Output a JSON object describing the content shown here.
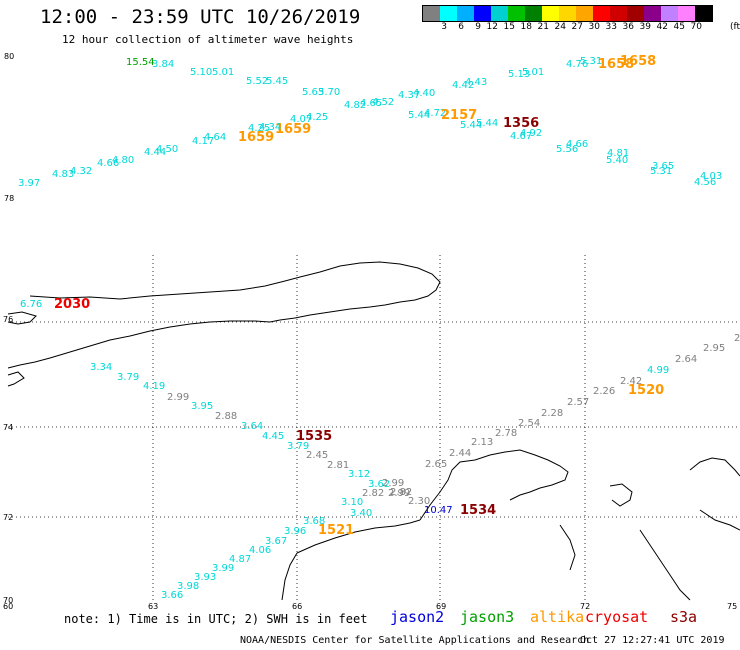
{
  "header": {
    "title": "12:00 - 23:59 UTC 10/26/2019",
    "subtitle": "12 hour collection of altimeter wave heights"
  },
  "colorbar": {
    "colors": [
      "#808080",
      "#00ffff",
      "#00b0ff",
      "#0000ff",
      "#00d0d0",
      "#00c000",
      "#008000",
      "#ffff00",
      "#ffd700",
      "#ffa500",
      "#ff0000",
      "#d00000",
      "#a00000",
      "#8b008b",
      "#c080ff",
      "#ff80ff",
      "#000000"
    ],
    "labels": [
      "3",
      "6",
      "9",
      "12",
      "15",
      "18",
      "21",
      "24",
      "27",
      "30",
      "33",
      "36",
      "39",
      "42",
      "45",
      "70"
    ],
    "unit": "(ft)"
  },
  "upper_panel": {
    "lat_top": "80",
    "lat_bottom": "78",
    "points": [
      {
        "v": "15.54",
        "c": "#00a000"
      },
      {
        "v": "3.84",
        "c": "#00d8d8"
      },
      {
        "v": "5.10",
        "c": "#00d8d8"
      },
      {
        "v": "5.01",
        "c": "#00d8d8"
      },
      {
        "v": "5.52",
        "c": "#00d8d8"
      },
      {
        "v": "5.45",
        "c": "#00d8d8"
      },
      {
        "v": "5.63",
        "c": "#00d8d8"
      },
      {
        "v": "5.70",
        "c": "#00d8d8"
      },
      {
        "v": "4.82",
        "c": "#00d8d8"
      },
      {
        "v": "4.65",
        "c": "#00d8d8"
      },
      {
        "v": "4.52",
        "c": "#00d8d8"
      },
      {
        "v": "4.37",
        "c": "#00d8d8"
      },
      {
        "v": "4.40",
        "c": "#00d8d8"
      },
      {
        "v": "4.42",
        "c": "#00d8d8"
      },
      {
        "v": "4.43",
        "c": "#00d8d8"
      },
      {
        "v": "5.13",
        "c": "#00d8d8"
      },
      {
        "v": "5.01",
        "c": "#00d8d8"
      },
      {
        "v": "4.76",
        "c": "#00d8d8"
      },
      {
        "v": "5.31",
        "c": "#00d8d8"
      },
      {
        "v": "1658",
        "c": "#ff9900"
      },
      {
        "v": "1658",
        "c": "#ff9900"
      },
      {
        "v": "5.44",
        "c": "#00d8d8"
      },
      {
        "v": "4.72",
        "c": "#00d8d8"
      },
      {
        "v": "2157",
        "c": "#ff9900"
      },
      {
        "v": "5.44",
        "c": "#00d8d8"
      },
      {
        "v": "5.44",
        "c": "#00d8d8"
      },
      {
        "v": "1356",
        "c": "#8b0000"
      },
      {
        "v": "4.67",
        "c": "#00d8d8"
      },
      {
        "v": "4.92",
        "c": "#00d8d8"
      },
      {
        "v": "4.66",
        "c": "#00d8d8"
      },
      {
        "v": "5.56",
        "c": "#00d8d8"
      },
      {
        "v": "4.81",
        "c": "#00d8d8"
      },
      {
        "v": "5.40",
        "c": "#00d8d8"
      },
      {
        "v": "3.65",
        "c": "#00d8d8"
      },
      {
        "v": "5.31",
        "c": "#00d8d8"
      },
      {
        "v": "4.03",
        "c": "#00d8d8"
      },
      {
        "v": "4.56",
        "c": "#00d8d8"
      },
      {
        "v": "4.07",
        "c": "#00d8d8"
      },
      {
        "v": "4.25",
        "c": "#00d8d8"
      },
      {
        "v": "1659",
        "c": "#ff9900"
      },
      {
        "v": "4.34",
        "c": "#00d8d8"
      },
      {
        "v": "4.25",
        "c": "#00d8d8"
      },
      {
        "v": "1659",
        "c": "#ff9900"
      },
      {
        "v": "4.64",
        "c": "#00d8d8"
      },
      {
        "v": "4.17",
        "c": "#00d8d8"
      },
      {
        "v": "4.50",
        "c": "#00d8d8"
      },
      {
        "v": "4.44",
        "c": "#00d8d8"
      },
      {
        "v": "4.80",
        "c": "#00d8d8"
      },
      {
        "v": "4.66",
        "c": "#00d8d8"
      },
      {
        "v": "4.32",
        "c": "#00d8d8"
      },
      {
        "v": "4.83",
        "c": "#00d8d8"
      },
      {
        "v": "3.97",
        "c": "#00d8d8"
      }
    ]
  },
  "lower_panel": {
    "lat_labels": [
      "76",
      "74",
      "72",
      "70"
    ],
    "lon_labels": [
      "60",
      "63",
      "66",
      "69",
      "72",
      "75"
    ],
    "points": [
      {
        "v": "6.76",
        "c": "#00d8d8"
      },
      {
        "v": "2030",
        "c": "#ee0000"
      },
      {
        "v": "3.34",
        "c": "#00d8d8"
      },
      {
        "v": "3.79",
        "c": "#00d8d8"
      },
      {
        "v": "4.19",
        "c": "#00d8d8"
      },
      {
        "v": "2.99",
        "c": "#808080"
      },
      {
        "v": "3.95",
        "c": "#00d8d8"
      },
      {
        "v": "2.88",
        "c": "#808080"
      },
      {
        "v": "3.64",
        "c": "#00d8d8"
      },
      {
        "v": "4.45",
        "c": "#00d8d8"
      },
      {
        "v": "1535",
        "c": "#8b0000"
      },
      {
        "v": "3.79",
        "c": "#00d8d8"
      },
      {
        "v": "2.45",
        "c": "#808080"
      },
      {
        "v": "2.81",
        "c": "#808080"
      },
      {
        "v": "3.12",
        "c": "#00d8d8"
      },
      {
        "v": "3.62",
        "c": "#00d8d8"
      },
      {
        "v": "2.99",
        "c": "#808080"
      },
      {
        "v": "2.82",
        "c": "#808080"
      },
      {
        "v": "2.99",
        "c": "#808080"
      },
      {
        "v": "2.82",
        "c": "#808080"
      },
      {
        "v": "3.10",
        "c": "#00d8d8"
      },
      {
        "v": "3.40",
        "c": "#00d8d8"
      },
      {
        "v": "2.30",
        "c": "#808080"
      },
      {
        "v": "10.47",
        "c": "#0000cc"
      },
      {
        "v": "1534",
        "c": "#8b0000"
      },
      {
        "v": "3.68",
        "c": "#00d8d8"
      },
      {
        "v": "1521",
        "c": "#ff9900"
      },
      {
        "v": "3.96",
        "c": "#00d8d8"
      },
      {
        "v": "3.67",
        "c": "#00d8d8"
      },
      {
        "v": "4.06",
        "c": "#00d8d8"
      },
      {
        "v": "4.87",
        "c": "#00d8d8"
      },
      {
        "v": "3.99",
        "c": "#00d8d8"
      },
      {
        "v": "3.93",
        "c": "#00d8d8"
      },
      {
        "v": "3.98",
        "c": "#00d8d8"
      },
      {
        "v": "3.66",
        "c": "#00d8d8"
      },
      {
        "v": "2.65",
        "c": "#808080"
      },
      {
        "v": "2.44",
        "c": "#808080"
      },
      {
        "v": "2.13",
        "c": "#808080"
      },
      {
        "v": "2.78",
        "c": "#808080"
      },
      {
        "v": "2.54",
        "c": "#808080"
      },
      {
        "v": "2.28",
        "c": "#808080"
      },
      {
        "v": "2.57",
        "c": "#808080"
      },
      {
        "v": "2.26",
        "c": "#808080"
      },
      {
        "v": "2.42",
        "c": "#808080"
      },
      {
        "v": "1520",
        "c": "#ff9900"
      },
      {
        "v": "4.99",
        "c": "#00d8d8"
      },
      {
        "v": "2.64",
        "c": "#808080"
      },
      {
        "v": "2.95",
        "c": "#808080"
      },
      {
        "v": "2",
        "c": "#808080"
      }
    ]
  },
  "footer": {
    "note": "note: 1) Time is in UTC; 2) SWH is in feet",
    "legend": [
      {
        "label": "jason2",
        "color": "#0000dd"
      },
      {
        "label": "jason3",
        "color": "#00a000"
      },
      {
        "label": "altika",
        "color": "#ff9900"
      },
      {
        "label": "cryosat",
        "color": "#ee0000"
      },
      {
        "label": "s3a",
        "color": "#8b0000"
      }
    ],
    "credit": "NOAA/NESDIS Center for Satellite Applications and Research",
    "timestamp": "Oct 27 12:27:41 UTC 2019"
  }
}
